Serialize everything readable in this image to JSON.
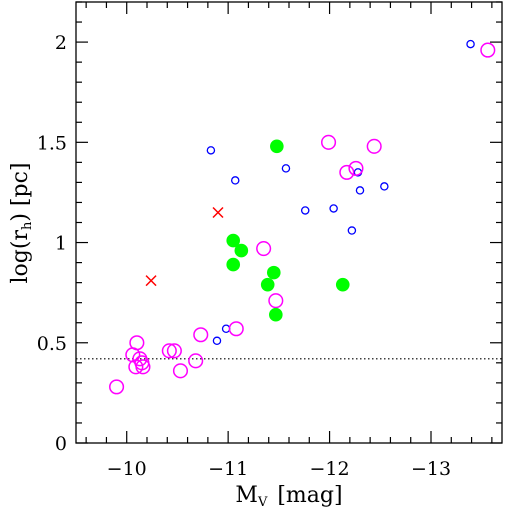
{
  "chart_data": {
    "type": "scatter",
    "xlabel": {
      "main": "M",
      "sub": "V",
      "unit": "[mag]"
    },
    "ylabel": {
      "prefix": "log(r",
      "sub": "h",
      "suffix": ")  [pc]"
    },
    "xlim": [
      -9.5,
      -13.7
    ],
    "ylim": [
      0,
      2.2
    ],
    "x_ticks": [
      -10,
      -11,
      -12,
      -13
    ],
    "x_tick_labels": [
      "−10",
      "−11",
      "−12",
      "−13"
    ],
    "y_ticks": [
      0,
      0.5,
      1,
      1.5,
      2
    ],
    "y_tick_labels": [
      "0",
      "0.5",
      "1",
      "1.5",
      "2"
    ],
    "reference_line": {
      "y": 0.42,
      "style": "dotted"
    },
    "grid": false,
    "series": [
      {
        "color": "#0000ff",
        "marker": "small-open-circle",
        "points": [
          {
            "x": -10.83,
            "y": 1.46
          },
          {
            "x": -11.07,
            "y": 1.31
          },
          {
            "x": -11.57,
            "y": 1.37
          },
          {
            "x": -11.76,
            "y": 1.16
          },
          {
            "x": -12.04,
            "y": 1.17
          },
          {
            "x": -12.28,
            "y": 1.35
          },
          {
            "x": -12.3,
            "y": 1.26
          },
          {
            "x": -12.54,
            "y": 1.28
          },
          {
            "x": -12.22,
            "y": 1.06
          },
          {
            "x": -13.39,
            "y": 1.99
          },
          {
            "x": -10.98,
            "y": 0.57
          },
          {
            "x": -10.89,
            "y": 0.51
          }
        ]
      },
      {
        "color": "#ff00ff",
        "marker": "large-open-circle",
        "points": [
          {
            "x": -9.9,
            "y": 0.28
          },
          {
            "x": -10.06,
            "y": 0.44
          },
          {
            "x": -10.09,
            "y": 0.38
          },
          {
            "x": -10.1,
            "y": 0.5
          },
          {
            "x": -10.13,
            "y": 0.42
          },
          {
            "x": -10.15,
            "y": 0.4
          },
          {
            "x": -10.16,
            "y": 0.38
          },
          {
            "x": -10.42,
            "y": 0.46
          },
          {
            "x": -10.47,
            "y": 0.46
          },
          {
            "x": -10.53,
            "y": 0.36
          },
          {
            "x": -10.68,
            "y": 0.41
          },
          {
            "x": -10.73,
            "y": 0.54
          },
          {
            "x": -11.08,
            "y": 0.57
          },
          {
            "x": -11.35,
            "y": 0.97
          },
          {
            "x": -11.47,
            "y": 0.71
          },
          {
            "x": -11.99,
            "y": 1.5
          },
          {
            "x": -12.17,
            "y": 1.35
          },
          {
            "x": -12.26,
            "y": 1.37
          },
          {
            "x": -12.44,
            "y": 1.48
          },
          {
            "x": -13.56,
            "y": 1.96
          }
        ]
      },
      {
        "color": "#00ff00",
        "marker": "filled-circle",
        "points": [
          {
            "x": -11.48,
            "y": 1.48
          },
          {
            "x": -11.05,
            "y": 1.01
          },
          {
            "x": -11.13,
            "y": 0.96
          },
          {
            "x": -11.05,
            "y": 0.89
          },
          {
            "x": -11.45,
            "y": 0.85
          },
          {
            "x": -11.39,
            "y": 0.79
          },
          {
            "x": -11.47,
            "y": 0.64
          },
          {
            "x": -12.13,
            "y": 0.79
          }
        ]
      },
      {
        "color": "#ff0000",
        "marker": "cross",
        "points": [
          {
            "x": -10.24,
            "y": 0.81
          },
          {
            "x": -10.9,
            "y": 1.15
          }
        ]
      }
    ]
  }
}
